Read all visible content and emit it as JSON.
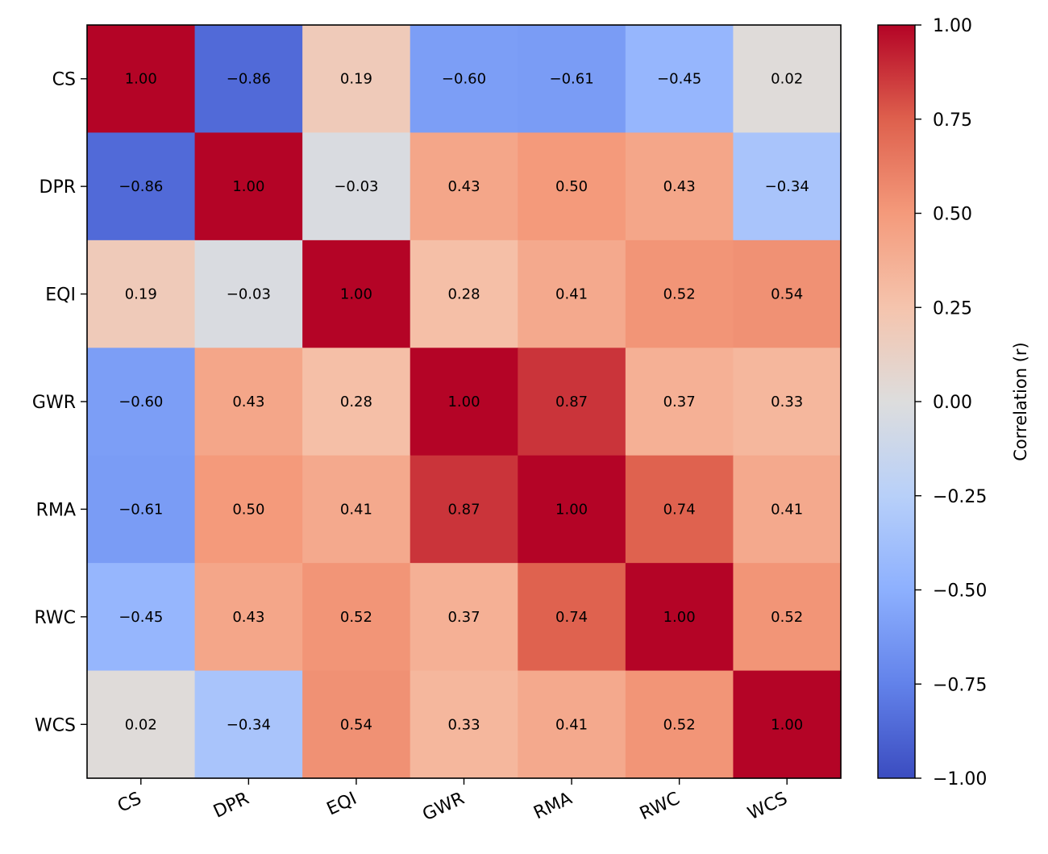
{
  "chart_data": {
    "type": "heatmap",
    "title": "",
    "rows": [
      "CS",
      "DPR",
      "EQI",
      "GWR",
      "RMA",
      "RWC",
      "WCS"
    ],
    "columns": [
      "CS",
      "DPR",
      "EQI",
      "GWR",
      "RMA",
      "RWC",
      "WCS"
    ],
    "values": [
      [
        1.0,
        -0.86,
        0.19,
        -0.6,
        -0.61,
        -0.45,
        0.02
      ],
      [
        -0.86,
        1.0,
        -0.03,
        0.43,
        0.5,
        0.43,
        -0.34
      ],
      [
        0.19,
        -0.03,
        1.0,
        0.28,
        0.41,
        0.52,
        0.54
      ],
      [
        -0.6,
        0.43,
        0.28,
        1.0,
        0.87,
        0.37,
        0.33
      ],
      [
        -0.61,
        0.5,
        0.41,
        0.87,
        1.0,
        0.74,
        0.41
      ],
      [
        -0.45,
        0.43,
        0.52,
        0.37,
        0.74,
        1.0,
        0.52
      ],
      [
        0.02,
        -0.34,
        0.54,
        0.33,
        0.41,
        0.52,
        1.0
      ]
    ],
    "colormap": "coolwarm",
    "vmin": -1.0,
    "vmax": 1.0,
    "colorbar": {
      "label": "Correlation (r)",
      "ticks": [
        1.0,
        0.75,
        0.5,
        0.25,
        0.0,
        -0.25,
        -0.5,
        -0.75,
        -1.0
      ],
      "tick_labels": [
        "1.00",
        "0.75",
        "0.50",
        "0.25",
        "0.00",
        "−0.25",
        "−0.50",
        "−0.75",
        "−1.00"
      ]
    },
    "cell_labels": [
      [
        "1.00",
        "−0.86",
        "0.19",
        "−0.60",
        "−0.61",
        "−0.45",
        "0.02"
      ],
      [
        "−0.86",
        "1.00",
        "−0.03",
        "0.43",
        "0.50",
        "0.43",
        "−0.34"
      ],
      [
        "0.19",
        "−0.03",
        "1.00",
        "0.28",
        "0.41",
        "0.52",
        "0.54"
      ],
      [
        "−0.60",
        "0.43",
        "0.28",
        "1.00",
        "0.87",
        "0.37",
        "0.33"
      ],
      [
        "−0.61",
        "0.50",
        "0.41",
        "0.87",
        "1.00",
        "0.74",
        "0.41"
      ],
      [
        "−0.45",
        "0.43",
        "0.52",
        "0.37",
        "0.74",
        "1.00",
        "0.52"
      ],
      [
        "0.02",
        "−0.34",
        "0.54",
        "0.33",
        "0.41",
        "0.52",
        "1.00"
      ]
    ]
  }
}
